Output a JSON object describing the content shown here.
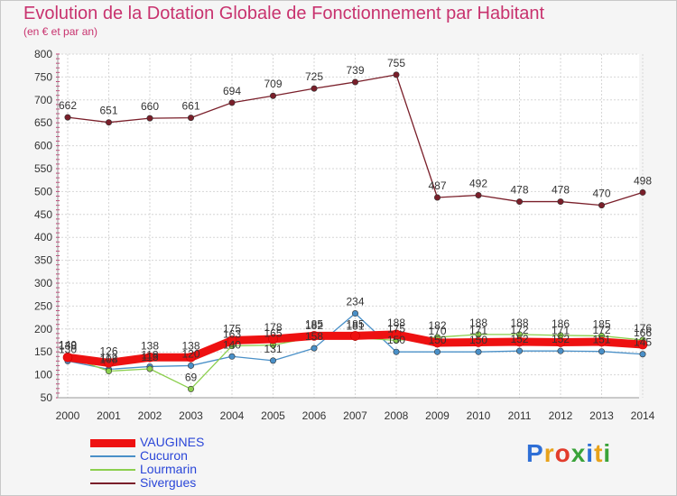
{
  "title": "Evolution de la Dotation Globale de Fonctionnement par Habitant",
  "subtitle": "(en € et par an)",
  "brand": {
    "letters": [
      "P",
      "r",
      "o",
      "x",
      "i",
      "t",
      "i"
    ],
    "colors": [
      "#2e6fd6",
      "#e8a21a",
      "#e23c2c",
      "#3aa33a",
      "#2e6fd6",
      "#e8a21a",
      "#3aa33a"
    ]
  },
  "chart_data": {
    "type": "line",
    "x": [
      "2000",
      "2001",
      "2002",
      "2003",
      "2004",
      "2005",
      "2006",
      "2007",
      "2008",
      "2009",
      "2010",
      "2011",
      "2012",
      "2013",
      "2014"
    ],
    "ylim": [
      50,
      800
    ],
    "yticks": [
      "50",
      "100",
      "150",
      "200",
      "250",
      "300",
      "350",
      "400",
      "450",
      "500",
      "550",
      "600",
      "650",
      "700",
      "750",
      "800"
    ],
    "grid": true,
    "legend_position": "bottom-left",
    "series": [
      {
        "name": "Sivergues",
        "color": "#7a1f2a",
        "values": [
          662,
          651,
          660,
          661,
          694,
          709,
          725,
          739,
          755,
          487,
          492,
          478,
          478,
          470,
          498
        ]
      },
      {
        "name": "Cucuron",
        "color": "#4a90c8",
        "values": [
          130,
          112,
          118,
          120,
          140,
          131,
          158,
          234,
          150,
          150,
          150,
          152,
          152,
          151,
          145
        ]
      },
      {
        "name": "Lourmarin",
        "color": "#8ccf4e",
        "values": [
          140,
          108,
          113,
          69,
          163,
          165,
          182,
          181,
          175,
          182,
          188,
          188,
          186,
          185,
          176
        ]
      },
      {
        "name": "VAUGINES",
        "color": "#ee1111",
        "values": [
          138,
          126,
          138,
          138,
          175,
          178,
          185,
          185,
          188,
          170,
          171,
          172,
          171,
          172,
          166
        ]
      }
    ],
    "labels": [
      {
        "name": "Sivergues",
        "values": [
          "662",
          "651",
          "660",
          "661",
          "694",
          "709",
          "725",
          "739",
          "755",
          "487",
          "492",
          "478",
          "478",
          "470",
          "498"
        ]
      },
      {
        "name": "Cucuron",
        "values": [
          "130",
          "112",
          "118",
          "120",
          "140",
          "131",
          "158",
          "234",
          "150",
          "150",
          "150",
          "152",
          "152",
          "151",
          "145"
        ]
      },
      {
        "name": "Lourmarin",
        "values": [
          "140",
          "108",
          "113",
          "69",
          "163",
          "165",
          "182",
          "181",
          "175",
          "182",
          "188",
          "188",
          "186",
          "185",
          "176"
        ]
      },
      {
        "name": "VAUGINES",
        "values": [
          "138",
          "126",
          "138",
          "138",
          "175",
          "178",
          "185",
          "185",
          "188",
          "170",
          "171",
          "172",
          "171",
          "172",
          "166"
        ]
      }
    ]
  },
  "legend": [
    {
      "label": "VAUGINES",
      "color": "#ee1111",
      "text_color": "#2a46d8",
      "thick": true
    },
    {
      "label": "Cucuron",
      "color": "#4a90c8",
      "text_color": "#2a46d8",
      "thick": false
    },
    {
      "label": "Lourmarin",
      "color": "#8ccf4e",
      "text_color": "#2a46d8",
      "thick": false
    },
    {
      "label": "Sivergues",
      "color": "#7a1f2a",
      "text_color": "#2a46d8",
      "thick": false
    }
  ]
}
